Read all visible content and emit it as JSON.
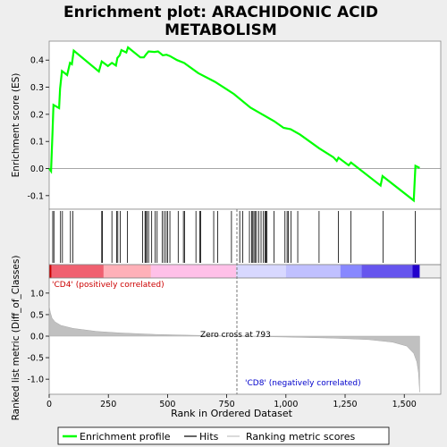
{
  "chart_data": {
    "type": "line",
    "title_line1": "Enrichment plot: ARACHIDONIC ACID",
    "title_line2": "METABOLISM",
    "xlabel": "Rank in Ordered Dataset",
    "xlim": [
      0,
      1654
    ],
    "xticks": [
      0,
      250,
      500,
      750,
      1000,
      1250,
      1500
    ],
    "xtick_labels": [
      "0",
      "250",
      "500",
      "750",
      "1,000",
      "1,250",
      "1,500"
    ],
    "es_panel": {
      "ylabel": "Enrichment score (ES)",
      "ylim": [
        -0.15,
        0.47
      ],
      "yticks": [
        -0.1,
        0.0,
        0.1,
        0.2,
        0.3,
        0.4
      ],
      "ytick_labels": [
        "-0.1",
        "0.0",
        "0.1",
        "0.2",
        "0.3",
        "0.4"
      ],
      "line_color": "#00ff00",
      "series": [
        {
          "x": 0,
          "y": 0.0
        },
        {
          "x": 8,
          "y": -0.01
        },
        {
          "x": 14,
          "y": 0.13
        },
        {
          "x": 18,
          "y": 0.235
        },
        {
          "x": 42,
          "y": 0.223
        },
        {
          "x": 46,
          "y": 0.295
        },
        {
          "x": 54,
          "y": 0.36
        },
        {
          "x": 76,
          "y": 0.345
        },
        {
          "x": 88,
          "y": 0.39
        },
        {
          "x": 96,
          "y": 0.385
        },
        {
          "x": 104,
          "y": 0.435
        },
        {
          "x": 210,
          "y": 0.358
        },
        {
          "x": 222,
          "y": 0.395
        },
        {
          "x": 248,
          "y": 0.378
        },
        {
          "x": 265,
          "y": 0.39
        },
        {
          "x": 282,
          "y": 0.38
        },
        {
          "x": 288,
          "y": 0.408
        },
        {
          "x": 298,
          "y": 0.418
        },
        {
          "x": 305,
          "y": 0.437
        },
        {
          "x": 326,
          "y": 0.428
        },
        {
          "x": 333,
          "y": 0.447
        },
        {
          "x": 385,
          "y": 0.41
        },
        {
          "x": 400,
          "y": 0.41
        },
        {
          "x": 410,
          "y": 0.422
        },
        {
          "x": 420,
          "y": 0.432
        },
        {
          "x": 445,
          "y": 0.43
        },
        {
          "x": 460,
          "y": 0.432
        },
        {
          "x": 480,
          "y": 0.418
        },
        {
          "x": 496,
          "y": 0.42
        },
        {
          "x": 510,
          "y": 0.415
        },
        {
          "x": 540,
          "y": 0.4
        },
        {
          "x": 570,
          "y": 0.39
        },
        {
          "x": 630,
          "y": 0.352
        },
        {
          "x": 700,
          "y": 0.32
        },
        {
          "x": 780,
          "y": 0.275
        },
        {
          "x": 850,
          "y": 0.225
        },
        {
          "x": 900,
          "y": 0.2
        },
        {
          "x": 950,
          "y": 0.175
        },
        {
          "x": 990,
          "y": 0.15
        },
        {
          "x": 1020,
          "y": 0.145
        },
        {
          "x": 1060,
          "y": 0.125
        },
        {
          "x": 1140,
          "y": 0.075
        },
        {
          "x": 1200,
          "y": 0.042
        },
        {
          "x": 1215,
          "y": 0.028
        },
        {
          "x": 1222,
          "y": 0.04
        },
        {
          "x": 1265,
          "y": 0.012
        },
        {
          "x": 1275,
          "y": 0.022
        },
        {
          "x": 1400,
          "y": -0.063
        },
        {
          "x": 1408,
          "y": -0.028
        },
        {
          "x": 1540,
          "y": -0.118
        },
        {
          "x": 1547,
          "y": 0.01
        },
        {
          "x": 1565,
          "y": 0.002
        }
      ]
    },
    "hits": [
      15,
      20,
      48,
      56,
      90,
      100,
      222,
      225,
      265,
      285,
      290,
      300,
      330,
      395,
      405,
      408,
      413,
      420,
      433,
      448,
      456,
      478,
      486,
      494,
      500,
      510,
      545,
      567,
      572,
      620,
      636,
      640,
      695,
      712,
      770,
      805,
      818,
      846,
      855,
      860,
      865,
      870,
      876,
      885,
      895,
      905,
      912,
      916,
      920,
      950,
      996,
      1005,
      1010,
      1022,
      1050,
      1140,
      1222,
      1275,
      1410,
      1546
    ],
    "heatmap_bar": {
      "zero_cross_rank": 793,
      "segments": [
        {
          "from": 0,
          "to": 10,
          "color": "#cc0000"
        },
        {
          "from": 10,
          "to": 230,
          "color": "#f06070"
        },
        {
          "from": 230,
          "to": 430,
          "color": "#ffb0b8"
        },
        {
          "from": 430,
          "to": 790,
          "color": "#ffc0e8"
        },
        {
          "from": 790,
          "to": 1000,
          "color": "#d8d8ff"
        },
        {
          "from": 1000,
          "to": 1230,
          "color": "#c0c0ff"
        },
        {
          "from": 1230,
          "to": 1320,
          "color": "#8888ff"
        },
        {
          "from": 1320,
          "to": 1535,
          "color": "#6655ee"
        },
        {
          "from": 1535,
          "to": 1565,
          "color": "#2200cc"
        }
      ],
      "positive_label": "'CD4' (positively correlated)",
      "negative_label": "'CD8' (negatively correlated)"
    },
    "metric_panel": {
      "ylabel": "Ranked list metric (Diff_of_Classes)",
      "ylim": [
        -1.35,
        1.35
      ],
      "yticks": [
        -1.0,
        -0.5,
        0.0,
        0.5,
        1.0
      ],
      "ytick_labels": [
        "-1.0",
        "-0.5",
        "0.0",
        "0.5",
        "1.0"
      ],
      "zero_cross_label": "Zero cross at 793",
      "profile": [
        {
          "x": 0,
          "y": 0.7
        },
        {
          "x": 5,
          "y": 0.55
        },
        {
          "x": 12,
          "y": 0.42
        },
        {
          "x": 25,
          "y": 0.33
        },
        {
          "x": 50,
          "y": 0.25
        },
        {
          "x": 100,
          "y": 0.18
        },
        {
          "x": 200,
          "y": 0.11
        },
        {
          "x": 300,
          "y": 0.075
        },
        {
          "x": 450,
          "y": 0.04
        },
        {
          "x": 600,
          "y": 0.02
        },
        {
          "x": 793,
          "y": 0.0
        },
        {
          "x": 1000,
          "y": -0.02
        },
        {
          "x": 1200,
          "y": -0.045
        },
        {
          "x": 1350,
          "y": -0.08
        },
        {
          "x": 1450,
          "y": -0.14
        },
        {
          "x": 1510,
          "y": -0.23
        },
        {
          "x": 1540,
          "y": -0.4
        },
        {
          "x": 1553,
          "y": -0.6
        },
        {
          "x": 1560,
          "y": -0.85
        },
        {
          "x": 1565,
          "y": -1.3
        }
      ]
    },
    "legend": [
      {
        "label": "Enrichment profile",
        "color": "#00ff00"
      },
      {
        "label": "Hits",
        "color": "#000000"
      },
      {
        "label": "Ranking metric scores",
        "color": "#c0c0c0"
      }
    ]
  }
}
